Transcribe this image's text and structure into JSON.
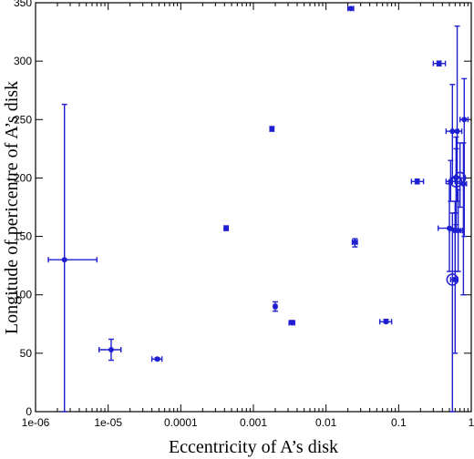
{
  "chart_data": {
    "type": "scatter",
    "title": "",
    "xlabel": "Eccentricity of A’s disk",
    "ylabel": "Longitude of pericentre of A’s disk",
    "xscale": "log",
    "xlim": [
      1e-06,
      1
    ],
    "ylim": [
      0,
      350
    ],
    "x_ticks": [
      1e-06,
      1e-05,
      0.0001,
      0.001,
      0.01,
      0.1,
      1
    ],
    "x_tick_labels": [
      "1e-06",
      "1e-05",
      "0.0001",
      "0.001",
      "0.01",
      "0.1",
      "1"
    ],
    "y_ticks": [
      0,
      50,
      100,
      150,
      200,
      250,
      300,
      350
    ],
    "y_tick_labels": [
      "0",
      "50",
      "100",
      "150",
      "200",
      "250",
      "300",
      "350"
    ],
    "grid": false,
    "legend": "none",
    "color": "#1f1fd1",
    "series": [
      {
        "marker": "dot",
        "points": [
          {
            "x": 2.5e-06,
            "y": 130,
            "xerr": [
              1.5e-06,
              7e-06
            ],
            "yerr": [
              0,
              263
            ]
          },
          {
            "x": 1.1e-05,
            "y": 53,
            "xerr": [
              7.5e-06,
              1.5e-05
            ],
            "yerr": [
              44,
              62
            ]
          },
          {
            "x": 4.75e-05,
            "y": 45,
            "xerr": [
              4e-05,
              5.5e-05
            ],
            "yerr": [
              44,
              46
            ]
          },
          {
            "x": 0.00042,
            "y": 157,
            "xerr": [
              0.0004,
              0.00045
            ],
            "yerr": [
              155,
              159
            ]
          },
          {
            "x": 0.0018,
            "y": 242,
            "xerr": [
              0.0017,
              0.0019
            ],
            "yerr": [
              240,
              244
            ]
          },
          {
            "x": 0.002,
            "y": 90,
            "xerr": [
              0.0019,
              0.0021
            ],
            "yerr": [
              86,
              94
            ]
          },
          {
            "x": 0.0034,
            "y": 76,
            "xerr": [
              0.0031,
              0.0037
            ],
            "yerr": [
              75,
              78
            ]
          },
          {
            "x": 0.022,
            "y": 345,
            "xerr": [
              0.02,
              0.024
            ],
            "yerr": [
              344,
              346
            ]
          },
          {
            "x": 0.025,
            "y": 145,
            "xerr": [
              0.023,
              0.027
            ],
            "yerr": [
              141,
              148
            ]
          },
          {
            "x": 0.067,
            "y": 77,
            "xerr": [
              0.055,
              0.08
            ],
            "yerr": [
              76,
              79
            ]
          },
          {
            "x": 0.18,
            "y": 197,
            "xerr": [
              0.15,
              0.22
            ],
            "yerr": [
              195,
              199
            ]
          },
          {
            "x": 0.36,
            "y": 298,
            "xerr": [
              0.3,
              0.44
            ],
            "yerr": [
              296,
              300
            ]
          },
          {
            "x": 0.5,
            "y": 157,
            "xerr": [
              0.35,
              0.62
            ],
            "yerr": [
              120,
              195
            ]
          },
          {
            "x": 0.52,
            "y": 197,
            "xerr": [
              0.45,
              0.6
            ],
            "yerr": [
              180,
              215
            ]
          },
          {
            "x": 0.55,
            "y": 240,
            "xerr": [
              0.45,
              0.66
            ],
            "yerr": [
              200,
              280
            ]
          },
          {
            "x": 0.6,
            "y": 155,
            "xerr": [
              0.5,
              0.72
            ],
            "yerr": [
              120,
              180
            ]
          },
          {
            "x": 0.62,
            "y": 200,
            "xerr": [
              0.55,
              0.7
            ],
            "yerr": [
              160,
              235
            ]
          },
          {
            "x": 0.64,
            "y": 240,
            "xerr": [
              0.56,
              0.74
            ],
            "yerr": [
              180,
              330
            ]
          },
          {
            "x": 0.66,
            "y": 155,
            "xerr": [
              0.58,
              0.76
            ],
            "yerr": [
              120,
              190
            ]
          },
          {
            "x": 0.6,
            "y": 113,
            "xerr": [
              0.56,
              0.65
            ],
            "yerr": [
              50,
              170
            ]
          },
          {
            "x": 0.8,
            "y": 250,
            "xerr": [
              0.7,
              0.9
            ],
            "yerr": [
              150,
              285
            ]
          },
          {
            "x": 0.78,
            "y": 195,
            "xerr": [
              0.7,
              0.86
            ],
            "yerr": [
              100,
              230
            ]
          }
        ]
      },
      {
        "marker": "open-circle",
        "points": [
          {
            "x": 0.55,
            "y": 113,
            "xerr": [
              0.52,
              0.6
            ],
            "yerr": [
              0,
              170
            ]
          },
          {
            "x": 0.62,
            "y": 197,
            "xerr": [
              0.55,
              0.7
            ],
            "yerr": [
              170,
              225
            ]
          },
          {
            "x": 0.7,
            "y": 200,
            "xerr": [
              0.62,
              0.8
            ],
            "yerr": [
              175,
              230
            ]
          }
        ]
      }
    ]
  }
}
